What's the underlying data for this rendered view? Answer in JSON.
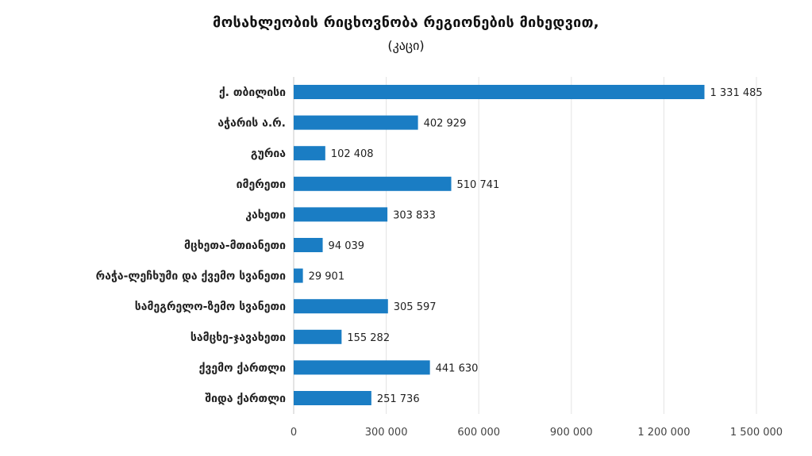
{
  "chart_data": {
    "type": "bar",
    "orientation": "horizontal",
    "title": "მოსახლეობის რიცხოვნობა რეგიონების მიხედვით,",
    "subtitle": "(კაცი)",
    "categories": [
      "ქ. თბილისი",
      "აჭარის ა.რ.",
      "გურია",
      "იმერეთი",
      "კახეთი",
      "მცხეთა-მთიანეთი",
      "რაჭა-ლეჩხუმი და ქვემო სვანეთი",
      "სამეგრელო-ზემო სვანეთი",
      "სამცხე-ჯავახეთი",
      "ქვემო ქართლი",
      "შიდა ქართლი"
    ],
    "values": [
      1331485,
      402929,
      102408,
      510741,
      303833,
      94039,
      29901,
      305597,
      155282,
      441630,
      251736
    ],
    "value_labels": [
      "1 331 485",
      "402 929",
      "102 408",
      "510 741",
      "303 833",
      "94 039",
      "29 901",
      "305 597",
      "155 282",
      "441 630",
      "251 736"
    ],
    "xlim": [
      0,
      1500000
    ],
    "x_ticks": [
      0,
      300000,
      600000,
      900000,
      1200000,
      1500000
    ],
    "x_tick_labels": [
      "0",
      "300 000",
      "600 000",
      "900 000",
      "1 200 000",
      "1 500 000"
    ],
    "grid": "vertical",
    "bar_color": "#1a7dc4",
    "grid_color": "#e3e3e3"
  }
}
